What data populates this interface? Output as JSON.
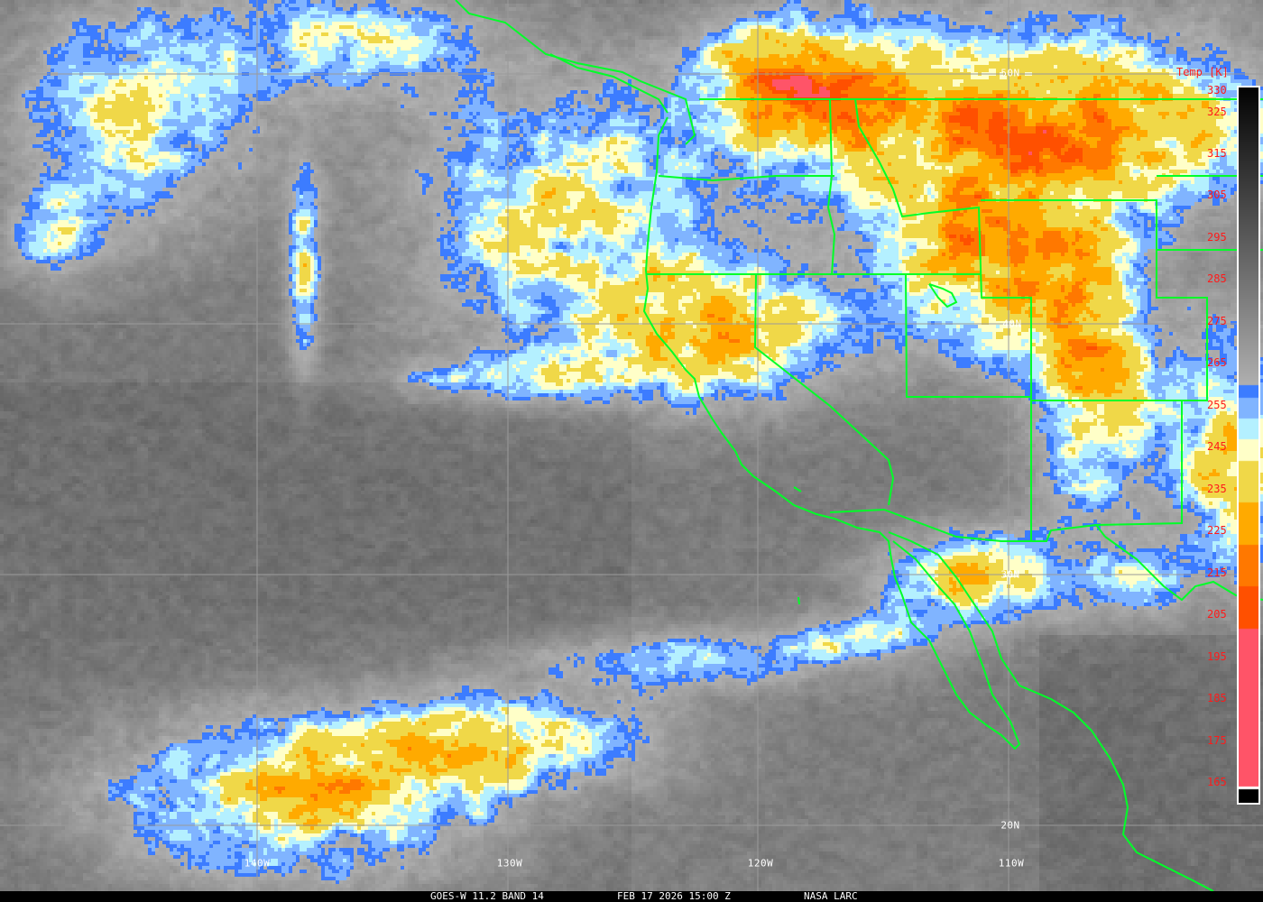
{
  "caption": {
    "satellite": "GOES-W 11.2 BAND 14",
    "datetime": "FEB 17 2026 15:00 Z",
    "source": "NASA LARC"
  },
  "colorbar": {
    "title": "Temp [K]",
    "ticks": [
      "330",
      "325",
      "315",
      "305",
      "295",
      "285",
      "275",
      "265",
      "255",
      "245",
      "235",
      "225",
      "215",
      "205",
      "195",
      "185",
      "175",
      "165"
    ],
    "tick_values": [
      330,
      325,
      315,
      305,
      295,
      285,
      275,
      265,
      255,
      245,
      235,
      225,
      215,
      205,
      195,
      185,
      175,
      165
    ],
    "range": [
      165,
      330
    ],
    "colors": {
      "below_200": "#ff5468",
      "200_210": "#ff5000",
      "210_220": "#ff7800",
      "220_230": "#ffaa00",
      "230_240": "#f0d848",
      "240_245": "#ffffc8",
      "245_250": "#b4f0ff",
      "250_255": "#80b4ff",
      "255_258": "#3c7cff",
      "warm_end": "#000000"
    }
  },
  "grid": {
    "latitudes": [
      "50N",
      "40N",
      "30N",
      "20N"
    ],
    "longitudes": [
      "140W",
      "130W",
      "120W",
      "110W"
    ],
    "grid_color": "#9a9a9a",
    "border_color": "#00ff28"
  }
}
